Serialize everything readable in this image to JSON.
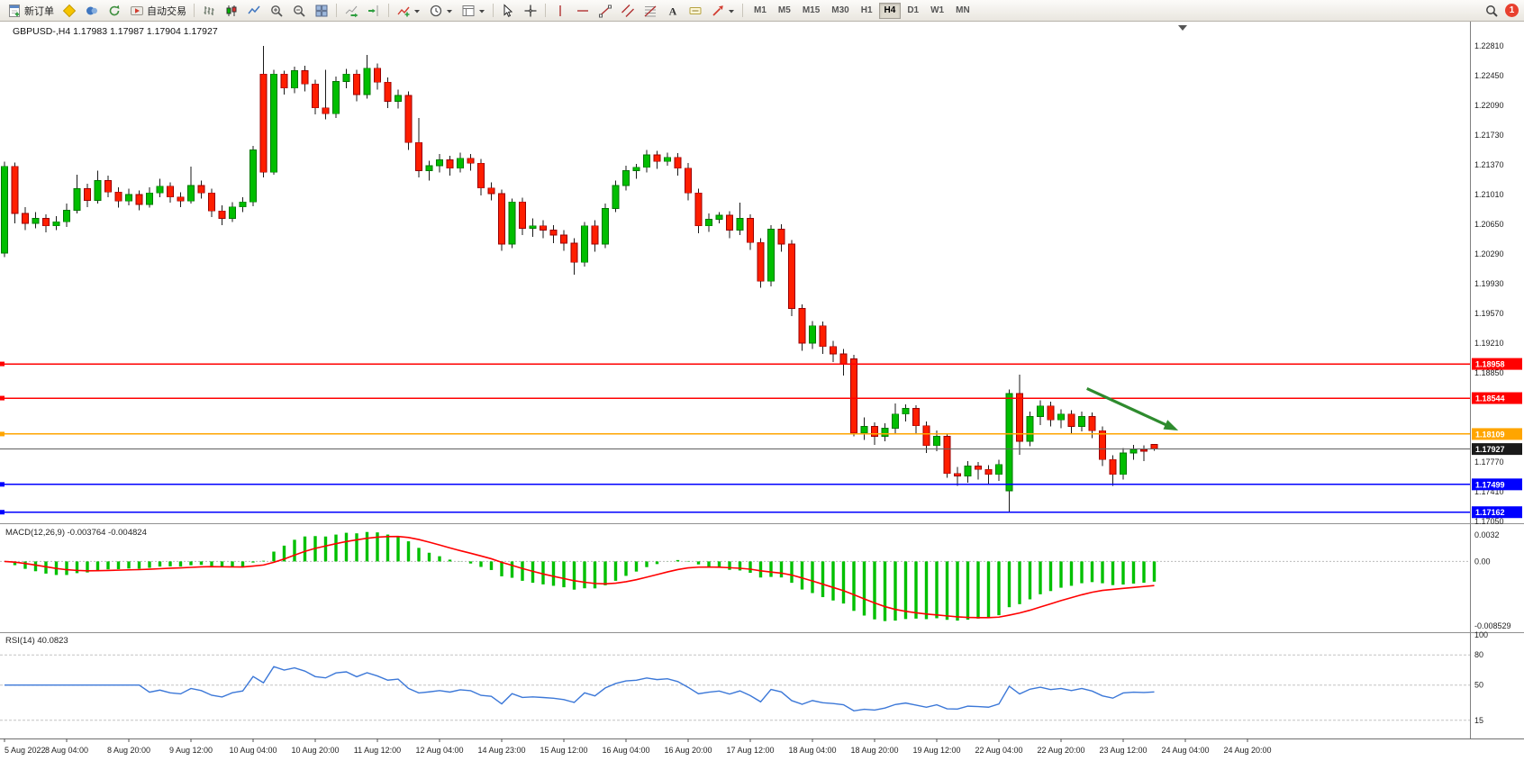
{
  "toolbar": {
    "new_order_label": "新订单",
    "auto_trading_label": "自动交易",
    "timeframes": [
      "M1",
      "M5",
      "M15",
      "M30",
      "H1",
      "H4",
      "D1",
      "W1",
      "MN"
    ],
    "active_timeframe": "H4",
    "notification_count": "1",
    "icon_names": [
      "new-order-icon",
      "metaeditor-icon",
      "community-icon",
      "refresh-icon",
      "auto-trading-icon",
      "bar-chart-icon",
      "candlestick-chart-icon",
      "line-chart-icon",
      "zoom-in-icon",
      "zoom-out-icon",
      "tile-windows-icon",
      "auto-scroll-icon",
      "chart-shift-icon",
      "indicators-icon",
      "periods-icon",
      "templates-icon",
      "cursor-icon",
      "crosshair-icon",
      "vertical-line-icon",
      "horizontal-line-icon",
      "trendline-icon",
      "channel-icon",
      "fibonacci-icon",
      "text-icon",
      "label-icon",
      "arrow-tool-icon",
      "search-icon"
    ]
  },
  "quote_header": {
    "symbol_period": "GBPUSD-,H4",
    "open": "1.17983",
    "high": "1.17987",
    "low": "1.17904",
    "close": "1.17927"
  },
  "time_axis": {
    "labels": [
      "5 Aug 2022",
      "8 Aug 04:00",
      "8 Aug 20:00",
      "9 Aug 12:00",
      "10 Aug 04:00",
      "10 Aug 20:00",
      "11 Aug 12:00",
      "12 Aug 04:00",
      "14 Aug 23:00",
      "15 Aug 12:00",
      "16 Aug 04:00",
      "16 Aug 20:00",
      "17 Aug 12:00",
      "18 Aug 04:00",
      "18 Aug 20:00",
      "19 Aug 12:00",
      "22 Aug 04:00",
      "22 Aug 20:00",
      "23 Aug 12:00",
      "24 Aug 04:00",
      "24 Aug 20:00"
    ],
    "label_bar_step": 6
  },
  "chart_data": {
    "type": "candlestick",
    "symbol": "GBPUSD-",
    "timeframe": "H4",
    "colors": {
      "up": "#00BE00",
      "down": "#FF1E00",
      "wick": "#1a1a1a",
      "up_border": "#007700",
      "down_border": "#990000"
    },
    "y_axis": {
      "top": 1.2281,
      "bottom": 1.1705,
      "ticks": [
        1.2281,
        1.2245,
        1.2209,
        1.2173,
        1.2137,
        1.2101,
        1.2065,
        1.2029,
        1.1993,
        1.1957,
        1.1921,
        1.1885,
        1.1777,
        1.1741,
        1.1705
      ]
    },
    "hlines": [
      {
        "price": 1.18958,
        "label": "1.18958",
        "color": "#FF0000",
        "width": 1.4,
        "handle": true,
        "badge_text": "#ffffff"
      },
      {
        "price": 1.18544,
        "label": "1.18544",
        "color": "#FF0000",
        "width": 1.4,
        "handle": true,
        "badge_text": "#ffffff"
      },
      {
        "price": 1.18109,
        "label": "1.18109",
        "color": "#FFA500",
        "width": 1.6,
        "handle": true,
        "badge_text": "#ffffff"
      },
      {
        "price": 1.17927,
        "label": "1.17927",
        "color": "#606060",
        "width": 1,
        "handle": false,
        "badge_bg": "#1a1a1a",
        "badge_text": "#ffffff"
      },
      {
        "price": 1.17499,
        "label": "1.17499",
        "color": "#0000FF",
        "width": 1.4,
        "handle": true,
        "badge_text": "#ffffff"
      },
      {
        "price": 1.17162,
        "label": "1.17162",
        "color": "#0000FF",
        "width": 1.4,
        "handle": true,
        "badge_text": "#ffffff"
      }
    ],
    "annotations": [
      {
        "type": "arrow",
        "color": "#2E8B2E",
        "from_bar": 104.5,
        "from_price": 1.1866,
        "to_bar": 113,
        "to_price": 1.1817
      }
    ],
    "indicators": {
      "macd": {
        "title": "MACD(12,26,9)",
        "macd_value": "-0.003764",
        "signal_value": "-0.004824",
        "histogram_color": "#00C000",
        "signal_color": "#FF0000",
        "scale_ticks": [
          {
            "v": 0.0032,
            "label": "0.0032"
          },
          {
            "v": 0,
            "label": "0.00"
          },
          {
            "v": -0.008529,
            "label": "-0.008529"
          }
        ]
      },
      "rsi": {
        "title": "RSI(14)",
        "value": "40.0823",
        "period": 14,
        "line_color": "#3C78D8",
        "levels": [
          80,
          50,
          15
        ],
        "scale_labels": [
          100,
          80,
          50,
          15
        ]
      }
    },
    "candles": [
      [
        1.203,
        1.2141,
        1.2025,
        1.2135
      ],
      [
        1.2135,
        1.214,
        1.2066,
        1.2078
      ],
      [
        1.2078,
        1.2086,
        1.2058,
        1.2066
      ],
      [
        1.2066,
        1.208,
        1.206,
        1.2072
      ],
      [
        1.2072,
        1.2077,
        1.2055,
        1.2063
      ],
      [
        1.2063,
        1.2075,
        1.2058,
        1.2068
      ],
      [
        1.2068,
        1.209,
        1.2062,
        1.2082
      ],
      [
        1.2082,
        1.2125,
        1.2078,
        1.2108
      ],
      [
        1.2108,
        1.2114,
        1.2086,
        1.2094
      ],
      [
        1.2094,
        1.213,
        1.209,
        1.2118
      ],
      [
        1.2118,
        1.2124,
        1.2098,
        1.2104
      ],
      [
        1.2104,
        1.211,
        1.2085,
        1.2093
      ],
      [
        1.2093,
        1.2108,
        1.2088,
        1.2101
      ],
      [
        1.2101,
        1.2106,
        1.2082,
        1.2089
      ],
      [
        1.2089,
        1.211,
        1.2085,
        1.2103
      ],
      [
        1.2103,
        1.212,
        1.2098,
        1.2111
      ],
      [
        1.2111,
        1.2116,
        1.2091,
        1.2098
      ],
      [
        1.2098,
        1.2104,
        1.2086,
        1.2093
      ],
      [
        1.2093,
        1.2135,
        1.209,
        1.2112
      ],
      [
        1.2112,
        1.2118,
        1.2096,
        1.2103
      ],
      [
        1.2103,
        1.2108,
        1.2074,
        1.2081
      ],
      [
        1.2081,
        1.2088,
        1.2064,
        1.2072
      ],
      [
        1.2072,
        1.2092,
        1.2068,
        1.2086
      ],
      [
        1.2086,
        1.2098,
        1.208,
        1.2092
      ],
      [
        1.2092,
        1.216,
        1.2087,
        1.2155
      ],
      [
        1.2247,
        1.2281,
        1.2122,
        1.2128
      ],
      [
        1.2128,
        1.2252,
        1.2125,
        1.2247
      ],
      [
        1.2247,
        1.2251,
        1.2222,
        1.223
      ],
      [
        1.223,
        1.2256,
        1.2224,
        1.2251
      ],
      [
        1.2251,
        1.2257,
        1.2226,
        1.2235
      ],
      [
        1.2235,
        1.224,
        1.2198,
        1.2206
      ],
      [
        1.2206,
        1.2252,
        1.2192,
        1.2199
      ],
      [
        1.2199,
        1.2244,
        1.2194,
        1.2238
      ],
      [
        1.2238,
        1.2253,
        1.223,
        1.2247
      ],
      [
        1.2247,
        1.2252,
        1.2214,
        1.2222
      ],
      [
        1.2222,
        1.227,
        1.2217,
        1.2254
      ],
      [
        1.2254,
        1.226,
        1.2228,
        1.2237
      ],
      [
        1.2237,
        1.2243,
        1.2206,
        1.2214
      ],
      [
        1.2214,
        1.2228,
        1.2205,
        1.2221
      ],
      [
        1.2221,
        1.2226,
        1.2155,
        1.2164
      ],
      [
        1.2164,
        1.2194,
        1.2122,
        1.213
      ],
      [
        1.213,
        1.2142,
        1.2118,
        1.2136
      ],
      [
        1.2136,
        1.215,
        1.2128,
        1.2143
      ],
      [
        1.2143,
        1.2148,
        1.2124,
        1.2133
      ],
      [
        1.2133,
        1.2152,
        1.2128,
        1.2145
      ],
      [
        1.2145,
        1.215,
        1.213,
        1.2139
      ],
      [
        1.2139,
        1.2144,
        1.21,
        1.2109
      ],
      [
        1.2109,
        1.2116,
        1.2094,
        1.2102
      ],
      [
        1.2102,
        1.2107,
        1.2033,
        1.2041
      ],
      [
        1.2041,
        1.2096,
        1.2036,
        1.2092
      ],
      [
        1.2092,
        1.2097,
        1.2052,
        1.206
      ],
      [
        1.206,
        1.2072,
        1.205,
        1.2063
      ],
      [
        1.2063,
        1.207,
        1.2048,
        1.2058
      ],
      [
        1.2058,
        1.2064,
        1.2042,
        1.2052
      ],
      [
        1.2052,
        1.2058,
        1.2033,
        1.2042
      ],
      [
        1.2042,
        1.2048,
        1.2004,
        1.2019
      ],
      [
        1.2019,
        1.2068,
        1.2014,
        1.2063
      ],
      [
        1.2063,
        1.207,
        1.2032,
        1.2041
      ],
      [
        1.2041,
        1.209,
        1.2036,
        1.2084
      ],
      [
        1.2084,
        1.2118,
        1.208,
        1.2112
      ],
      [
        1.2112,
        1.2136,
        1.2106,
        1.213
      ],
      [
        1.213,
        1.2138,
        1.212,
        1.2134
      ],
      [
        1.2134,
        1.2155,
        1.2128,
        1.2149
      ],
      [
        1.2149,
        1.2154,
        1.2132,
        1.2141
      ],
      [
        1.2141,
        1.2152,
        1.2136,
        1.2146
      ],
      [
        1.2146,
        1.2151,
        1.2124,
        1.2133
      ],
      [
        1.2133,
        1.2139,
        1.2094,
        1.2103
      ],
      [
        1.2103,
        1.2108,
        1.2054,
        1.2063
      ],
      [
        1.2063,
        1.2078,
        1.2056,
        1.2071
      ],
      [
        1.2071,
        1.208,
        1.2066,
        1.2076
      ],
      [
        1.2076,
        1.2081,
        1.2048,
        1.2058
      ],
      [
        1.2058,
        1.2091,
        1.2052,
        1.2072
      ],
      [
        1.2072,
        1.2077,
        1.2034,
        1.2043
      ],
      [
        1.2043,
        1.2048,
        1.1988,
        1.1996
      ],
      [
        1.1996,
        1.2064,
        1.199,
        1.2059
      ],
      [
        1.2059,
        1.2065,
        1.2032,
        1.2041
      ],
      [
        1.2041,
        1.2046,
        1.1954,
        1.1963
      ],
      [
        1.1963,
        1.1968,
        1.1912,
        1.1921
      ],
      [
        1.1921,
        1.1948,
        1.1914,
        1.1942
      ],
      [
        1.1942,
        1.1947,
        1.1908,
        1.1917
      ],
      [
        1.1917,
        1.1924,
        1.1898,
        1.1908
      ],
      [
        1.1908,
        1.1914,
        1.1882,
        1.1895
      ],
      [
        1.1902,
        1.1907,
        1.1808,
        1.1812
      ],
      [
        1.1812,
        1.1831,
        1.1804,
        1.182
      ],
      [
        1.182,
        1.1825,
        1.1798,
        1.1808
      ],
      [
        1.1808,
        1.1824,
        1.1802,
        1.1818
      ],
      [
        1.1818,
        1.1848,
        1.1812,
        1.1835
      ],
      [
        1.1835,
        1.1847,
        1.1826,
        1.1842
      ],
      [
        1.1842,
        1.1846,
        1.1812,
        1.1821
      ],
      [
        1.1821,
        1.1826,
        1.1788,
        1.1797
      ],
      [
        1.1797,
        1.1815,
        1.179,
        1.1808
      ],
      [
        1.1808,
        1.1812,
        1.1758,
        1.1763
      ],
      [
        1.1763,
        1.1771,
        1.1748,
        1.176
      ],
      [
        1.176,
        1.1778,
        1.1752,
        1.1772
      ],
      [
        1.1772,
        1.1777,
        1.1756,
        1.1768
      ],
      [
        1.1768,
        1.1773,
        1.175,
        1.1762
      ],
      [
        1.1762,
        1.178,
        1.1754,
        1.1774
      ],
      [
        1.1742,
        1.1865,
        1.1716,
        1.186
      ],
      [
        1.186,
        1.1883,
        1.1786,
        1.1802
      ],
      [
        1.1802,
        1.1838,
        1.1796,
        1.1832
      ],
      [
        1.1832,
        1.1852,
        1.1822,
        1.1845
      ],
      [
        1.1845,
        1.185,
        1.182,
        1.1828
      ],
      [
        1.1828,
        1.1841,
        1.1818,
        1.1835
      ],
      [
        1.1835,
        1.184,
        1.1812,
        1.182
      ],
      [
        1.182,
        1.1838,
        1.1814,
        1.1832
      ],
      [
        1.1832,
        1.1837,
        1.1806,
        1.1815
      ],
      [
        1.1815,
        1.182,
        1.1772,
        1.178
      ],
      [
        1.178,
        1.1785,
        1.1748,
        1.1762
      ],
      [
        1.1762,
        1.1794,
        1.1756,
        1.1788
      ],
      [
        1.1788,
        1.1798,
        1.178,
        1.1792
      ],
      [
        1.1792,
        1.1797,
        1.1778,
        1.179
      ],
      [
        1.17983,
        1.17987,
        1.17904,
        1.17927
      ]
    ]
  }
}
